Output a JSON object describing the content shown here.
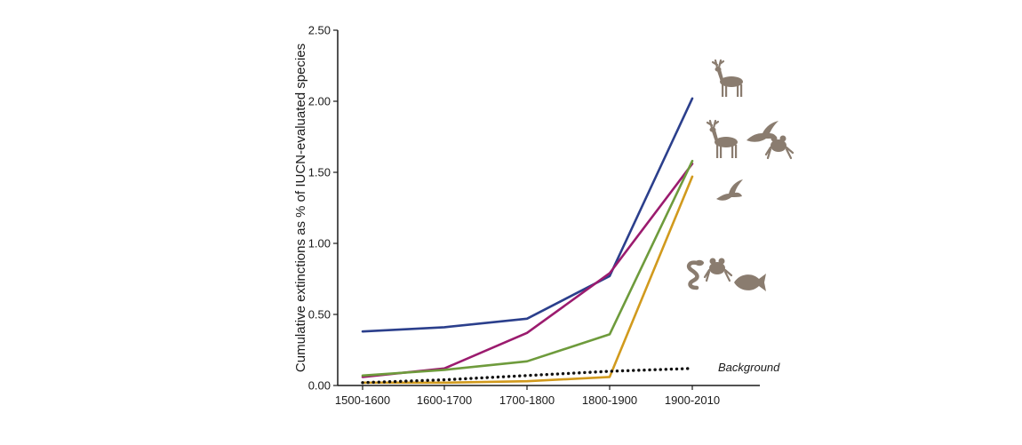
{
  "chart_data": {
    "type": "line",
    "title": "",
    "xlabel": "",
    "ylabel": "Cumulative extinctions as % of IUCN-evaluated species",
    "categories": [
      "1500-1600",
      "1600-1700",
      "1700-1800",
      "1800-1900",
      "1900-2010"
    ],
    "ylim": [
      0,
      2.5
    ],
    "yticks": [
      "0.00",
      "0.50",
      "1.00",
      "1.50",
      "2.00",
      "2.50"
    ],
    "grid": false,
    "legend": "none",
    "series": [
      {
        "color": "#2b3f8c",
        "values": [
          0.38,
          0.41,
          0.47,
          0.77,
          2.02
        ]
      },
      {
        "color": "#9b1b6e",
        "values": [
          0.06,
          0.12,
          0.37,
          0.79,
          1.56
        ]
      },
      {
        "color": "#6e9b3c",
        "values": [
          0.07,
          0.11,
          0.17,
          0.36,
          1.58
        ]
      },
      {
        "color": "#d19a1d",
        "values": [
          0.02,
          0.02,
          0.03,
          0.06,
          1.47
        ]
      },
      {
        "color": "#111111",
        "style": "dotted",
        "values": [
          0.02,
          0.04,
          0.07,
          0.1,
          0.12
        ]
      }
    ],
    "annotations": [
      {
        "text": "Background"
      }
    ]
  },
  "icons": {
    "mammal": "deer-icon",
    "bird": "bird-icon",
    "amphibian": "frog-icon",
    "reptile": "snake-icon",
    "fish": "fish-icon",
    "icon_color": "#8a7c6f"
  }
}
